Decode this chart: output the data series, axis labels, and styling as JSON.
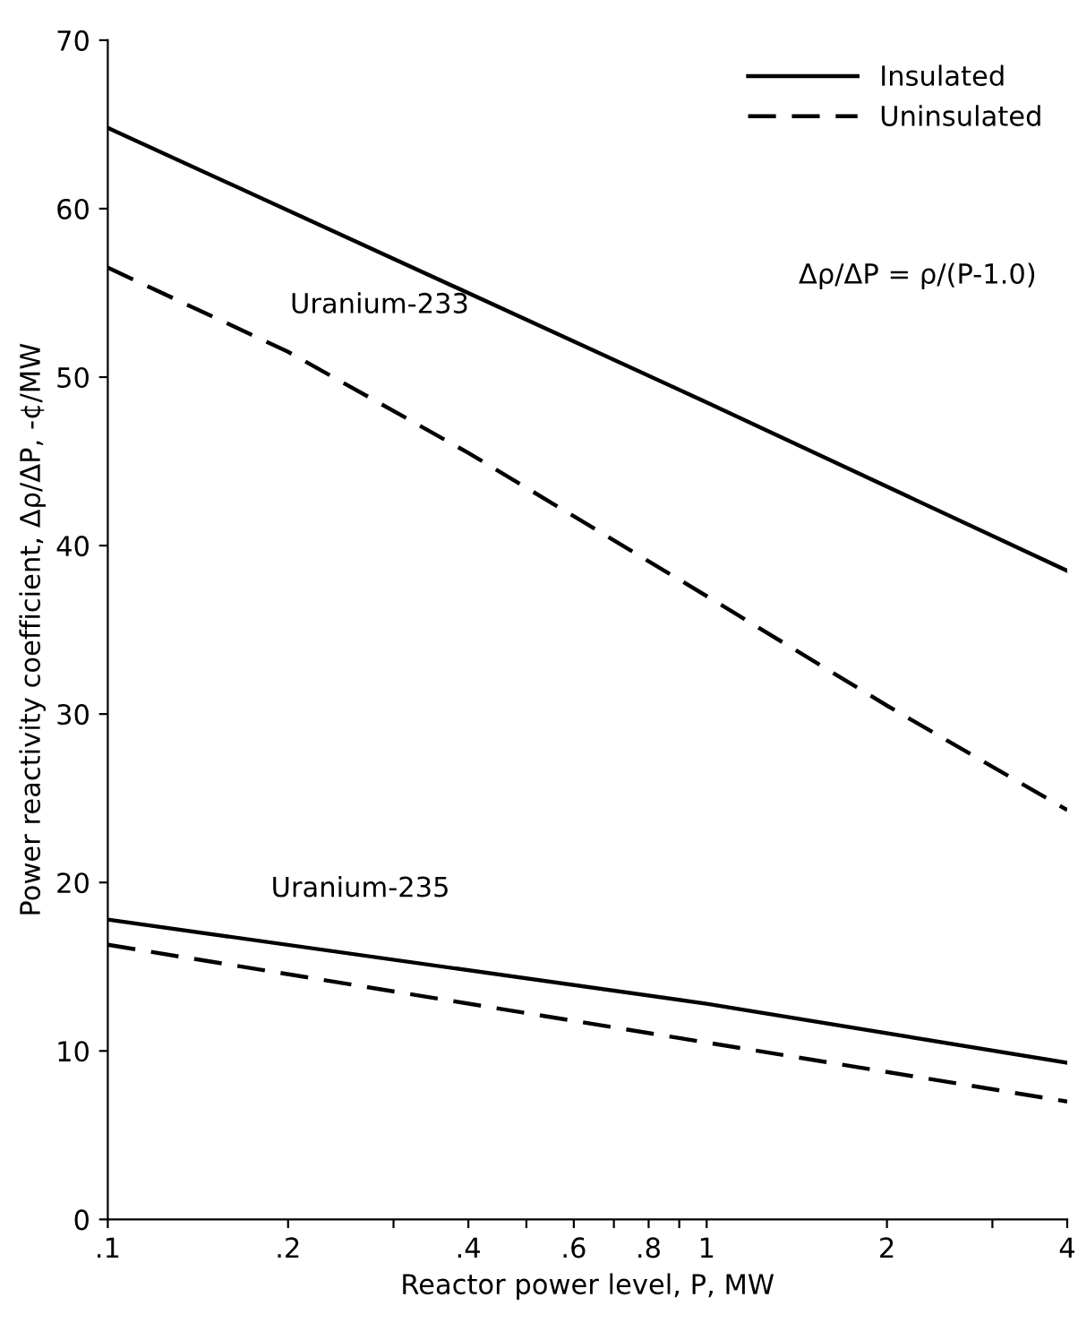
{
  "chart_data": {
    "type": "line",
    "xlabel": "Reactor power level, P, MW",
    "ylabel": "Power reactivity coefficient, Δρ/ΔP, -¢/MW",
    "log": "x",
    "grid": false,
    "legend": "top right",
    "marker": "none",
    "xlim": [
      0.1,
      4
    ],
    "ylim": [
      0,
      70
    ],
    "xticks": [
      {
        "value": 0.1,
        "label": ".1"
      },
      {
        "value": 0.2,
        "label": ".2"
      },
      {
        "value": 0.3,
        "label": null
      },
      {
        "value": 0.4,
        "label": ".4"
      },
      {
        "value": 0.5,
        "label": null
      },
      {
        "value": 0.6,
        "label": ".6"
      },
      {
        "value": 0.7,
        "label": null
      },
      {
        "value": 0.8,
        "label": ".8"
      },
      {
        "value": 0.9,
        "label": null
      },
      {
        "value": 1,
        "label": "1"
      },
      {
        "value": 2,
        "label": "2"
      },
      {
        "value": 3,
        "label": null
      },
      {
        "value": 4,
        "label": "4"
      }
    ],
    "yticks": [
      0,
      10,
      20,
      30,
      40,
      50,
      60,
      70
    ],
    "series": [
      {
        "name": "Insulated",
        "color": "#000000",
        "line_style": "solid",
        "x": [
          0.1,
          1,
          4
        ],
        "values": [
          64.8,
          48.5,
          38.5
        ]
      },
      {
        "name": "Uninsulated",
        "color": "#000000",
        "line_style": "dashed",
        "x": [
          0.1,
          0.2,
          0.4,
          1,
          2,
          4
        ],
        "values": [
          56.5,
          51.5,
          45.5,
          37,
          30.5,
          24.3
        ]
      },
      {
        "color": "#000000",
        "line_style": "solid",
        "x": [
          0.1,
          1,
          4
        ],
        "values": [
          17.8,
          12.8,
          9.3
        ]
      },
      {
        "color": "#000000",
        "line_style": "dashed",
        "x": [
          0.1,
          1,
          4
        ],
        "values": [
          16.3,
          10.5,
          7.0
        ]
      }
    ],
    "annotations": [
      "Uranium-233",
      "Uranium-235",
      "Δρ/ΔP = ρ/(P-1.0)"
    ]
  }
}
